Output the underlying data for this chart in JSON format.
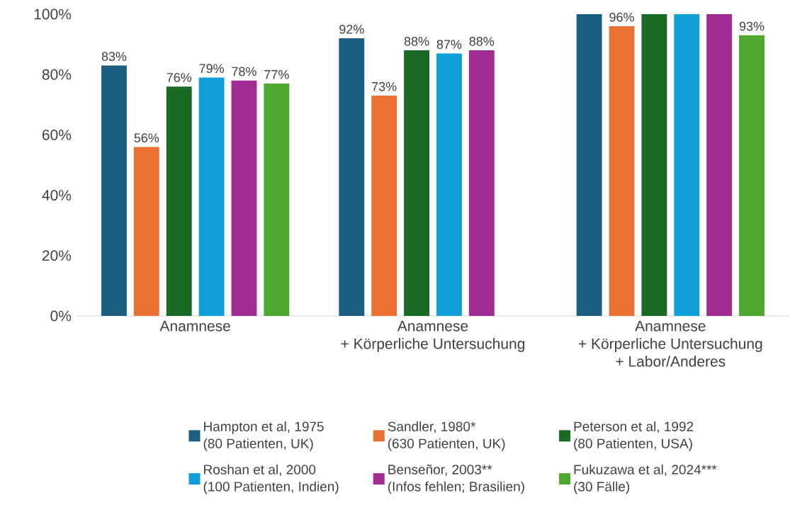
{
  "chart_data": {
    "type": "bar",
    "categories": [
      "Anamnese",
      "Anamnese\n+ Körperliche Untersuchung",
      "Anamnese\n+ Körperliche Untersuchung\n+ Labor/Anderes"
    ],
    "series": [
      {
        "name": "Hampton et al, 1975\n(80 Patienten, UK)",
        "color": "#1b5e80",
        "values": [
          83,
          92,
          100
        ],
        "value_labels": [
          "83%",
          "92%",
          null
        ]
      },
      {
        "name": "Sandler, 1980*\n(630 Patienten, UK)",
        "color": "#e97132",
        "values": [
          56,
          73,
          96
        ],
        "value_labels": [
          "56%",
          "73%",
          "96%"
        ]
      },
      {
        "name": "Peterson et al, 1992\n(80 Patienten, USA)",
        "color": "#196b24",
        "values": [
          76,
          88,
          100
        ],
        "value_labels": [
          "76%",
          "88%",
          null
        ]
      },
      {
        "name": "Roshan et al, 2000\n(100 Patienten, Indien)",
        "color": "#0f9ed5",
        "values": [
          79,
          87,
          100
        ],
        "value_labels": [
          "79%",
          "87%",
          null
        ]
      },
      {
        "name": "Benseñor, 2003**\n(Infos fehlen; Brasilien)",
        "color": "#a02b93",
        "values": [
          78,
          88,
          100
        ],
        "value_labels": [
          "78%",
          "88%",
          null
        ]
      },
      {
        "name": "Fukuzawa et al, 2024***\n(30 Fälle)",
        "color": "#4ea72e",
        "values": [
          77,
          null,
          93
        ],
        "value_labels": [
          "77%",
          null,
          "93%"
        ]
      }
    ],
    "ylim": [
      0,
      100
    ],
    "yticks": [
      {
        "value": 0,
        "label": "0%"
      },
      {
        "value": 20,
        "label": "20%"
      },
      {
        "value": 40,
        "label": "40%"
      },
      {
        "value": 60,
        "label": "60%"
      },
      {
        "value": 80,
        "label": "80%"
      },
      {
        "value": 100,
        "label": "100%"
      }
    ],
    "grid": false,
    "legend": "bottom"
  }
}
